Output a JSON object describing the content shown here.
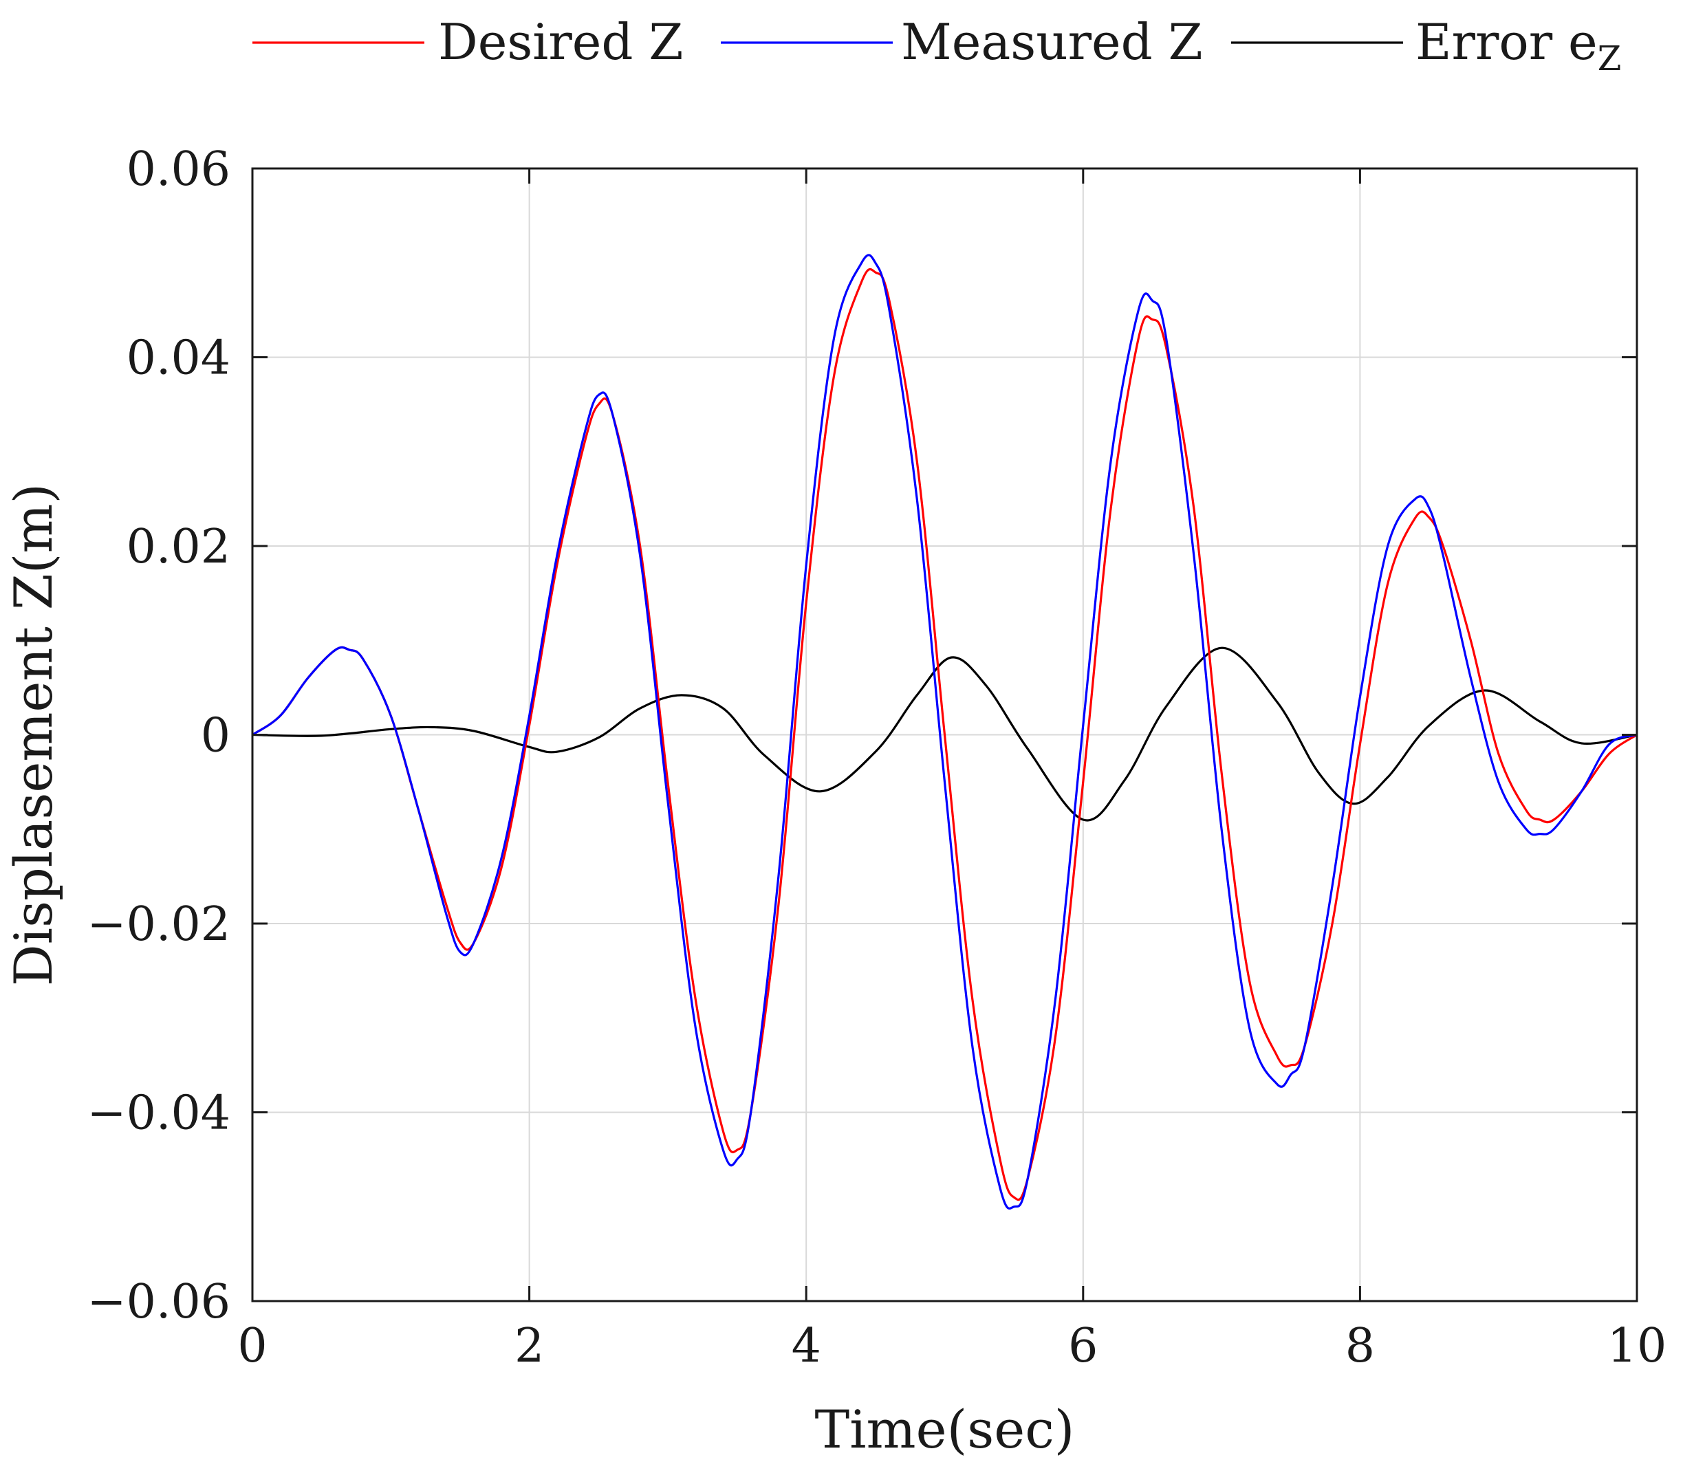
{
  "chart_data": {
    "type": "line",
    "title": "",
    "xlabel": "Time(sec)",
    "ylabel": "Displasement Z(m)",
    "xlim": [
      0,
      10
    ],
    "ylim": [
      -0.06,
      0.06
    ],
    "xticks": [
      0,
      2,
      4,
      6,
      8,
      10
    ],
    "xtick_labels": [
      "0",
      "2",
      "4",
      "6",
      "8",
      "10"
    ],
    "yticks": [
      -0.06,
      -0.04,
      -0.02,
      0,
      0.02,
      0.04,
      0.06
    ],
    "ytick_labels": [
      "−0.06",
      "−0.04",
      "−0.02",
      "0",
      "0.02",
      "0.04",
      "0.06"
    ],
    "grid": true,
    "legend_position": "top",
    "series": [
      {
        "name": "Desired Z",
        "color": "#ff0000",
        "x": [
          0,
          0.2,
          0.4,
          0.6,
          0.7,
          0.8,
          1.0,
          1.2,
          1.4,
          1.5,
          1.6,
          1.8,
          2.0,
          2.2,
          2.4,
          2.5,
          2.6,
          2.8,
          3.0,
          3.2,
          3.4,
          3.5,
          3.6,
          3.8,
          4.0,
          4.2,
          4.4,
          4.5,
          4.6,
          4.8,
          5.0,
          5.2,
          5.4,
          5.5,
          5.6,
          5.8,
          6.0,
          6.2,
          6.4,
          6.5,
          6.6,
          6.8,
          7.0,
          7.2,
          7.4,
          7.5,
          7.6,
          7.8,
          8.0,
          8.2,
          8.4,
          8.5,
          8.6,
          8.8,
          9.0,
          9.2,
          9.3,
          9.4,
          9.6,
          9.8,
          10.0
        ],
        "y": [
          0,
          0.002,
          0.006,
          0.009,
          0.009,
          0.008,
          0.002,
          -0.008,
          -0.018,
          -0.022,
          -0.022,
          -0.014,
          0.001,
          0.018,
          0.031,
          0.035,
          0.034,
          0.02,
          -0.005,
          -0.028,
          -0.042,
          -0.044,
          -0.04,
          -0.018,
          0.014,
          0.038,
          0.048,
          0.049,
          0.046,
          0.029,
          0.0,
          -0.028,
          -0.045,
          -0.049,
          -0.047,
          -0.032,
          -0.005,
          0.024,
          0.042,
          0.044,
          0.041,
          0.024,
          -0.004,
          -0.026,
          -0.034,
          -0.035,
          -0.033,
          -0.02,
          -0.001,
          0.016,
          0.023,
          0.023,
          0.02,
          0.01,
          -0.002,
          -0.008,
          -0.009,
          -0.009,
          -0.006,
          -0.002,
          0.0
        ]
      },
      {
        "name": "Measured Z",
        "color": "#0000ff",
        "x": [
          0,
          0.2,
          0.4,
          0.6,
          0.7,
          0.8,
          1.0,
          1.2,
          1.4,
          1.5,
          1.6,
          1.8,
          2.0,
          2.2,
          2.4,
          2.5,
          2.6,
          2.8,
          3.0,
          3.2,
          3.4,
          3.5,
          3.6,
          3.8,
          4.0,
          4.2,
          4.4,
          4.5,
          4.6,
          4.8,
          5.0,
          5.2,
          5.4,
          5.5,
          5.6,
          5.8,
          6.0,
          6.2,
          6.4,
          6.5,
          6.6,
          6.8,
          7.0,
          7.2,
          7.4,
          7.5,
          7.6,
          7.8,
          8.0,
          8.2,
          8.4,
          8.5,
          8.6,
          8.8,
          9.0,
          9.2,
          9.3,
          9.4,
          9.6,
          9.8,
          10.0
        ],
        "y": [
          0,
          0.002,
          0.006,
          0.009,
          0.009,
          0.008,
          0.002,
          -0.008,
          -0.019,
          -0.023,
          -0.022,
          -0.013,
          0.002,
          0.019,
          0.032,
          0.036,
          0.034,
          0.019,
          -0.007,
          -0.031,
          -0.044,
          -0.045,
          -0.04,
          -0.015,
          0.018,
          0.042,
          0.05,
          0.05,
          0.045,
          0.025,
          -0.005,
          -0.033,
          -0.048,
          -0.05,
          -0.047,
          -0.028,
          0.001,
          0.029,
          0.045,
          0.046,
          0.042,
          0.019,
          -0.01,
          -0.031,
          -0.037,
          -0.036,
          -0.033,
          -0.016,
          0.004,
          0.02,
          0.025,
          0.024,
          0.019,
          0.006,
          -0.005,
          -0.01,
          -0.0105,
          -0.01,
          -0.006,
          -0.001,
          0.0
        ]
      },
      {
        "name": "Error e",
        "name_sub": "Z",
        "color": "#000000",
        "x": [
          0,
          0.5,
          1.0,
          1.3,
          1.6,
          2.0,
          2.2,
          2.5,
          2.8,
          3.1,
          3.4,
          3.7,
          4.1,
          4.5,
          4.8,
          5.05,
          5.3,
          5.6,
          6.0,
          6.3,
          6.6,
          7.0,
          7.4,
          7.7,
          7.95,
          8.2,
          8.5,
          8.9,
          9.3,
          9.6,
          10.0
        ],
        "y": [
          0,
          -0.0001,
          0.0006,
          0.0008,
          0.0004,
          -0.0013,
          -0.0018,
          -0.0003,
          0.0028,
          0.0042,
          0.0028,
          -0.0022,
          -0.006,
          -0.0018,
          0.0042,
          0.0082,
          0.0052,
          -0.0015,
          -0.009,
          -0.0048,
          0.003,
          0.0092,
          0.0035,
          -0.004,
          -0.0073,
          -0.0045,
          0.001,
          0.0047,
          0.0014,
          -0.0009,
          0.0
        ]
      }
    ]
  }
}
